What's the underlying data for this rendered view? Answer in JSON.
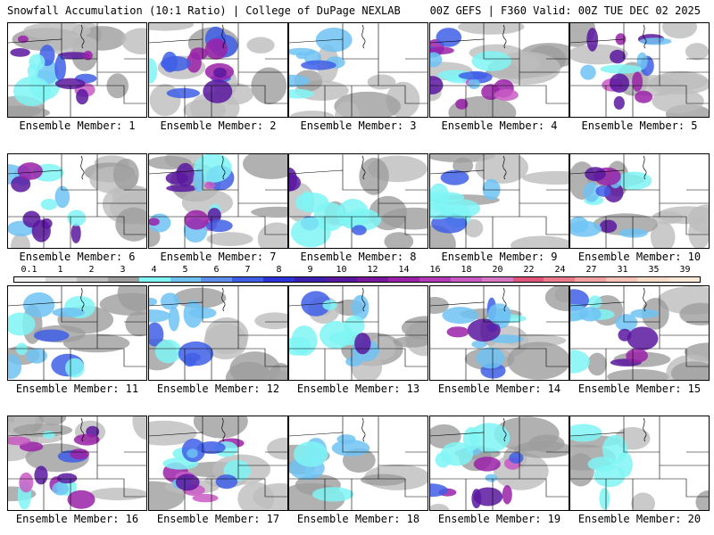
{
  "header": {
    "title_left": "Snowfall Accumulation (10:1 Ratio) | College of DuPage NEXLAB",
    "title_right": "00Z GEFS | F360 Valid: 00Z TUE DEC 02 2025"
  },
  "colorbar": {
    "labels": [
      "0.1",
      "1",
      "2",
      "3",
      "4",
      "5",
      "6",
      "7",
      "8",
      "9",
      "10",
      "12",
      "14",
      "16",
      "18",
      "20",
      "22",
      "24",
      "27",
      "31",
      "35",
      "39"
    ],
    "colors": [
      "#f2f2f2",
      "#d8d8d8",
      "#bdbdbd",
      "#9e9e9e",
      "#7ff5f5",
      "#6fc3f3",
      "#5f8fee",
      "#3f5fe6",
      "#2a34d8",
      "#3c1fb0",
      "#5a18a0",
      "#7a189e",
      "#9a21a8",
      "#b43bb8",
      "#c95ac4",
      "#d677c6",
      "#e0557a",
      "#ea7a8a",
      "#f2a0a0",
      "#f6c3b8",
      "#f9dcc8",
      "#fde9d8"
    ]
  },
  "panels": [
    {
      "label": "Ensemble Member: 1",
      "intensity": 0.8
    },
    {
      "label": "Ensemble Member: 2",
      "intensity": 0.7
    },
    {
      "label": "Ensemble Member: 3",
      "intensity": 0.35
    },
    {
      "label": "Ensemble Member: 4",
      "intensity": 0.95
    },
    {
      "label": "Ensemble Member: 5",
      "intensity": 0.75
    },
    {
      "label": "Ensemble Member: 6",
      "intensity": 0.7
    },
    {
      "label": "Ensemble Member: 7",
      "intensity": 0.8
    },
    {
      "label": "Ensemble Member: 8",
      "intensity": 0.45
    },
    {
      "label": "Ensemble Member: 9",
      "intensity": 0.35
    },
    {
      "label": "Ensemble Member: 10",
      "intensity": 0.6
    },
    {
      "label": "Ensemble Member: 11",
      "intensity": 0.45
    },
    {
      "label": "Ensemble Member: 12",
      "intensity": 0.5
    },
    {
      "label": "Ensemble Member: 13",
      "intensity": 0.55
    },
    {
      "label": "Ensemble Member: 14",
      "intensity": 0.6
    },
    {
      "label": "Ensemble Member: 15",
      "intensity": 0.7
    },
    {
      "label": "Ensemble Member: 16",
      "intensity": 0.85
    },
    {
      "label": "Ensemble Member: 17",
      "intensity": 0.8
    },
    {
      "label": "Ensemble Member: 18",
      "intensity": 0.25
    },
    {
      "label": "Ensemble Member: 19",
      "intensity": 0.75
    },
    {
      "label": "Ensemble Member: 20",
      "intensity": 0.15
    }
  ]
}
